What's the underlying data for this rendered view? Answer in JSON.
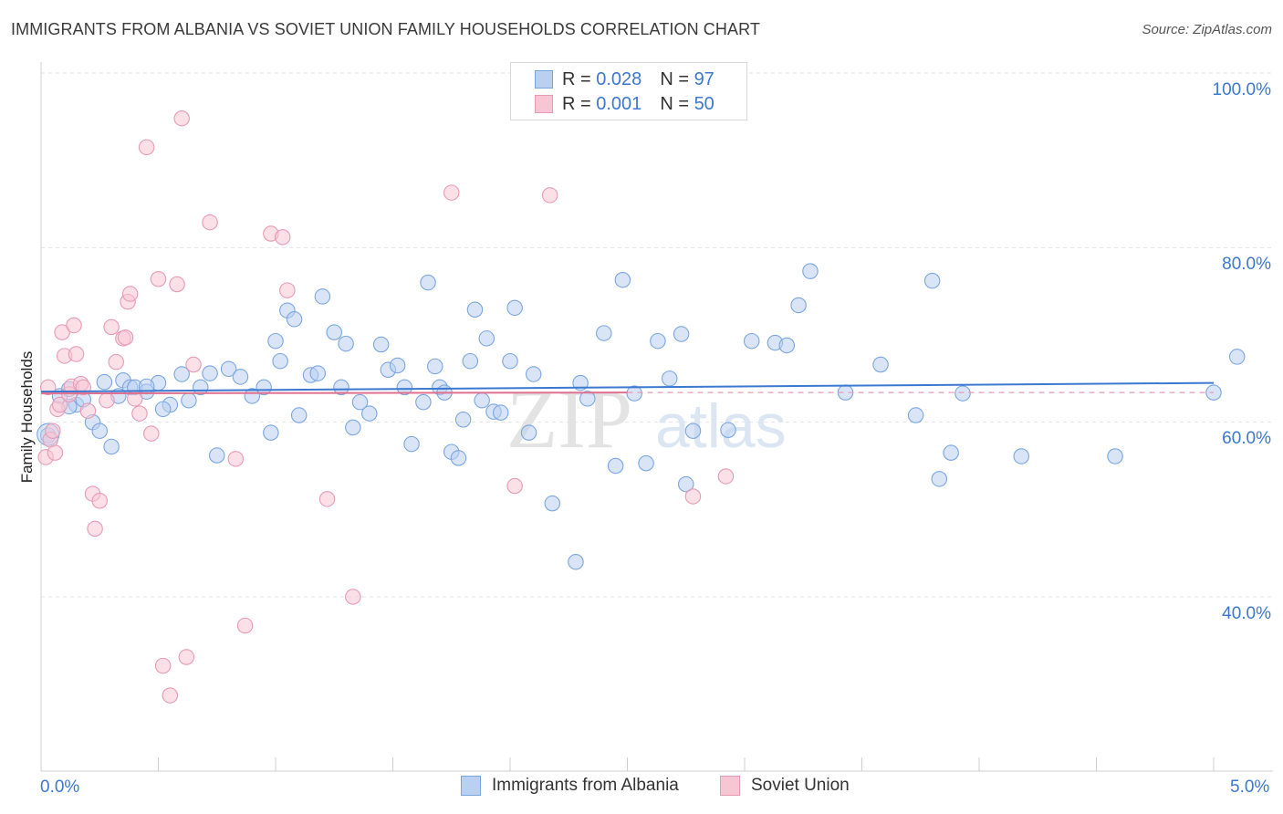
{
  "title": "IMMIGRANTS FROM ALBANIA VS SOVIET UNION FAMILY HOUSEHOLDS CORRELATION CHART",
  "source": "Source: ZipAtlas.com",
  "watermark": {
    "zip": "ZIP",
    "atlas": "atlas"
  },
  "legend": {
    "r_label": "R =",
    "n_label": "N =",
    "series": [
      {
        "r_value": "0.028",
        "n_value": "97"
      },
      {
        "r_value": "0.001",
        "n_value": "50"
      }
    ]
  },
  "bottom_legend": [
    "Immigrants from Albania",
    "Soviet Union"
  ],
  "axis": {
    "ylabel": "Family Households",
    "x_min_label": "0.0%",
    "x_max_label": "5.0%"
  },
  "chart_data": {
    "type": "scatter",
    "xlim": [
      0,
      5
    ],
    "ylim": [
      20,
      100
    ],
    "y_ticks": [
      {
        "value": 100,
        "label": "100.0%"
      },
      {
        "value": 80,
        "label": "80.0%"
      },
      {
        "value": 60,
        "label": "60.0%"
      },
      {
        "value": 40,
        "label": "40.0%"
      }
    ],
    "x_unit": "%",
    "series": [
      {
        "name": "Immigrants from Albania",
        "color": "#7aa6e0",
        "fill": "#b9d0f1",
        "trend": {
          "x": [
            0,
            5
          ],
          "y": [
            63.5,
            64.5
          ]
        },
        "points": [
          [
            0.03,
            58.5
          ],
          [
            0.08,
            63
          ],
          [
            0.12,
            63.8
          ],
          [
            0.15,
            62
          ],
          [
            0.18,
            62.6
          ],
          [
            0.22,
            60
          ],
          [
            0.25,
            59
          ],
          [
            0.3,
            57.2
          ],
          [
            0.33,
            63
          ],
          [
            0.35,
            64.8
          ],
          [
            0.38,
            64
          ],
          [
            0.4,
            64
          ],
          [
            0.45,
            63.5
          ],
          [
            0.5,
            64.5
          ],
          [
            0.55,
            62
          ],
          [
            0.6,
            65.5
          ],
          [
            0.63,
            62.5
          ],
          [
            0.68,
            64
          ],
          [
            0.72,
            65.6
          ],
          [
            0.75,
            56.2
          ],
          [
            0.8,
            66.1
          ],
          [
            0.85,
            65.2
          ],
          [
            0.9,
            63
          ],
          [
            0.95,
            64
          ],
          [
            0.98,
            58.8
          ],
          [
            1.0,
            69.3
          ],
          [
            1.02,
            67
          ],
          [
            1.05,
            72.8
          ],
          [
            1.08,
            71.8
          ],
          [
            1.1,
            60.8
          ],
          [
            1.15,
            65.4
          ],
          [
            1.18,
            65.6
          ],
          [
            1.2,
            74.4
          ],
          [
            1.25,
            70.3
          ],
          [
            1.28,
            64
          ],
          [
            1.3,
            69
          ],
          [
            1.33,
            59.4
          ],
          [
            1.36,
            62.3
          ],
          [
            1.4,
            61
          ],
          [
            1.45,
            68.9
          ],
          [
            1.48,
            66
          ],
          [
            1.52,
            66.5
          ],
          [
            1.55,
            64
          ],
          [
            1.58,
            57.5
          ],
          [
            1.63,
            62.3
          ],
          [
            1.65,
            76
          ],
          [
            1.68,
            66.4
          ],
          [
            1.7,
            64
          ],
          [
            1.72,
            63.4
          ],
          [
            1.75,
            56.6
          ],
          [
            1.78,
            55.9
          ],
          [
            1.8,
            60.3
          ],
          [
            1.83,
            67
          ],
          [
            1.85,
            72.9
          ],
          [
            1.88,
            62.5
          ],
          [
            1.9,
            69.6
          ],
          [
            1.93,
            61.2
          ],
          [
            1.96,
            61.1
          ],
          [
            2.0,
            67
          ],
          [
            2.02,
            73.1
          ],
          [
            2.08,
            58.8
          ],
          [
            2.1,
            65.5
          ],
          [
            2.18,
            50.7
          ],
          [
            2.28,
            44
          ],
          [
            2.3,
            64.5
          ],
          [
            2.33,
            62.7
          ],
          [
            2.4,
            70.2
          ],
          [
            2.45,
            55
          ],
          [
            2.48,
            76.3
          ],
          [
            2.53,
            63.3
          ],
          [
            2.58,
            55.3
          ],
          [
            2.63,
            69.3
          ],
          [
            2.68,
            65
          ],
          [
            2.73,
            70.1
          ],
          [
            2.75,
            52.9
          ],
          [
            2.78,
            59
          ],
          [
            2.93,
            59.1
          ],
          [
            3.03,
            69.3
          ],
          [
            3.13,
            69.1
          ],
          [
            3.18,
            68.8
          ],
          [
            3.23,
            73.4
          ],
          [
            3.28,
            77.3
          ],
          [
            3.43,
            63.4
          ],
          [
            3.58,
            66.6
          ],
          [
            3.73,
            60.8
          ],
          [
            3.8,
            76.2
          ],
          [
            3.83,
            53.5
          ],
          [
            3.88,
            56.5
          ],
          [
            3.93,
            63.3
          ],
          [
            4.18,
            56.1
          ],
          [
            4.58,
            56.1
          ],
          [
            5.0,
            63.4
          ],
          [
            5.1,
            67.5
          ],
          [
            0.27,
            64.6
          ],
          [
            0.52,
            61.5
          ],
          [
            0.12,
            61.8
          ],
          [
            0.45,
            64.1
          ]
        ]
      },
      {
        "name": "Soviet Union",
        "color": "#e79ab5",
        "fill": "#f7c6d5",
        "trend": {
          "x": [
            0,
            2.5
          ],
          "y": [
            63.3,
            63.4
          ]
        },
        "points": [
          [
            0.02,
            56
          ],
          [
            0.03,
            64
          ],
          [
            0.04,
            58
          ],
          [
            0.05,
            59
          ],
          [
            0.06,
            56.5
          ],
          [
            0.07,
            61.5
          ],
          [
            0.08,
            62
          ],
          [
            0.09,
            70.3
          ],
          [
            0.1,
            67.6
          ],
          [
            0.12,
            63.2
          ],
          [
            0.13,
            64.1
          ],
          [
            0.14,
            71.1
          ],
          [
            0.15,
            67.8
          ],
          [
            0.17,
            64.4
          ],
          [
            0.18,
            64
          ],
          [
            0.2,
            61.3
          ],
          [
            0.22,
            51.8
          ],
          [
            0.23,
            47.8
          ],
          [
            0.25,
            51
          ],
          [
            0.28,
            62.5
          ],
          [
            0.3,
            70.9
          ],
          [
            0.32,
            66.9
          ],
          [
            0.35,
            69.6
          ],
          [
            0.36,
            69.7
          ],
          [
            0.37,
            73.8
          ],
          [
            0.38,
            74.7
          ],
          [
            0.4,
            62.7
          ],
          [
            0.42,
            61
          ],
          [
            0.45,
            91.5
          ],
          [
            0.47,
            58.7
          ],
          [
            0.5,
            76.4
          ],
          [
            0.52,
            32.1
          ],
          [
            0.55,
            28.7
          ],
          [
            0.58,
            75.8
          ],
          [
            0.6,
            94.8
          ],
          [
            0.62,
            33.1
          ],
          [
            0.65,
            66.6
          ],
          [
            0.72,
            82.9
          ],
          [
            0.83,
            55.8
          ],
          [
            0.87,
            36.7
          ],
          [
            0.98,
            81.6
          ],
          [
            1.03,
            81.2
          ],
          [
            1.05,
            75.1
          ],
          [
            1.22,
            51.2
          ],
          [
            1.33,
            40
          ],
          [
            1.75,
            86.3
          ],
          [
            2.02,
            52.7
          ],
          [
            2.17,
            86
          ],
          [
            2.78,
            51.5
          ],
          [
            2.92,
            53.8
          ]
        ]
      }
    ]
  }
}
